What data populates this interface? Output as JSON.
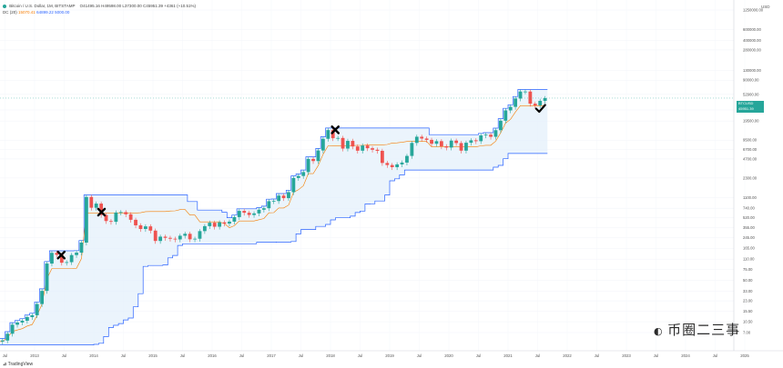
{
  "header": {
    "symbol": "Bitcoin / U.S. Dollar, 1M, BITSTAMP",
    "ohlc": "O41495.16 H49598.00 L37300.00 C45951.39 +4361 (+10.51%)",
    "dc_label": "DC (20)",
    "dc_value_1": "15070.41",
    "dc_value_2": "64899.22",
    "dc_value_3": "5000.00"
  },
  "price_tag": {
    "line1": "BTCUSD",
    "line2": "45951.39",
    "line3": "2 01 16"
  },
  "footer": {
    "tradingview": "TradingView",
    "watermark": "币圈二三事"
  },
  "colors": {
    "up": "#26a69a",
    "down": "#ef5350",
    "channel_line": "#2962ff",
    "basis_line": "#f57c00",
    "channel_fill": "#e3f0fb"
  },
  "chart_data": {
    "type": "candlestick",
    "y_scale": "log",
    "y_axis_unit": "USD",
    "y_ticks": [
      {
        "label": "1250000.00",
        "value": 1250000
      },
      {
        "label": "600000.00",
        "value": 600000
      },
      {
        "label": "400000.00",
        "value": 400000
      },
      {
        "label": "280000.00",
        "value": 280000
      },
      {
        "label": "130000.00",
        "value": 130000
      },
      {
        "label": "90000.00",
        "value": 90000
      },
      {
        "label": "52900.00",
        "value": 52900
      },
      {
        "label": "29500.00",
        "value": 29500
      },
      {
        "label": "19500.00",
        "value": 19500
      },
      {
        "label": "9500.00",
        "value": 9500
      },
      {
        "label": "6700.00",
        "value": 6700
      },
      {
        "label": "4700.00",
        "value": 4700
      },
      {
        "label": "2300.00",
        "value": 2300
      },
      {
        "label": "1100.00",
        "value": 1100
      },
      {
        "label": "740.00",
        "value": 740
      },
      {
        "label": "520.00",
        "value": 520
      },
      {
        "label": "355.00",
        "value": 355
      },
      {
        "label": "245.00",
        "value": 245
      },
      {
        "label": "165.00",
        "value": 165
      },
      {
        "label": "110.00",
        "value": 110
      },
      {
        "label": "75.00",
        "value": 75
      },
      {
        "label": "50.00",
        "value": 50
      },
      {
        "label": "33.00",
        "value": 33
      },
      {
        "label": "23.00",
        "value": 23
      },
      {
        "label": "15.50",
        "value": 15.5
      },
      {
        "label": "10.50",
        "value": 10.5
      },
      {
        "label": "7.00",
        "value": 7
      }
    ],
    "x_ticks": [
      {
        "label": "Jul",
        "t": 2012.5
      },
      {
        "label": "2013",
        "t": 2013.0
      },
      {
        "label": "Jul",
        "t": 2013.5
      },
      {
        "label": "2014",
        "t": 2014.0
      },
      {
        "label": "Jul",
        "t": 2014.5
      },
      {
        "label": "2015",
        "t": 2015.0
      },
      {
        "label": "Jul",
        "t": 2015.5
      },
      {
        "label": "2016",
        "t": 2016.0
      },
      {
        "label": "Jul",
        "t": 2016.5
      },
      {
        "label": "2017",
        "t": 2017.0
      },
      {
        "label": "Jul",
        "t": 2017.5
      },
      {
        "label": "2018",
        "t": 2018.0
      },
      {
        "label": "Jul",
        "t": 2018.5
      },
      {
        "label": "2019",
        "t": 2019.0
      },
      {
        "label": "Jul",
        "t": 2019.5
      },
      {
        "label": "2020",
        "t": 2020.0
      },
      {
        "label": "Jul",
        "t": 2020.5
      },
      {
        "label": "2021",
        "t": 2021.0
      },
      {
        "label": "Jul",
        "t": 2021.5
      },
      {
        "label": "2022",
        "t": 2022.0
      },
      {
        "label": "Jul",
        "t": 2022.5
      },
      {
        "label": "2023",
        "t": 2023.0
      },
      {
        "label": "Jul",
        "t": 2023.5
      },
      {
        "label": "2024",
        "t": 2024.0
      },
      {
        "label": "Jul",
        "t": 2024.5
      },
      {
        "label": "2025",
        "t": 2025.0
      },
      {
        "label": "Jul",
        "t": 2025.5
      }
    ],
    "closes": [
      5.2,
      5.0,
      5.0,
      4.9,
      5.0,
      5.2,
      6.7,
      9.4,
      10.2,
      10.9,
      12.5,
      13.4,
      20.4,
      33.4,
      93,
      139,
      129,
      96,
      98,
      128,
      140,
      204,
      1130,
      754,
      880,
      575,
      458,
      445,
      630,
      640,
      590,
      480,
      390,
      340,
      375,
      320,
      217,
      255,
      244,
      236,
      230,
      264,
      284,
      231,
      236,
      314,
      378,
      430,
      370,
      436,
      416,
      448,
      531,
      670,
      625,
      575,
      610,
      700,
      740,
      963,
      970,
      1190,
      1080,
      1350,
      2300,
      2480,
      2870,
      4700,
      4340,
      6450,
      10000,
      13860,
      10220,
      10320,
      6930,
      9240,
      7500,
      6400,
      7780,
      7020,
      6630,
      6370,
      4040,
      3740,
      3450,
      3830,
      4100,
      5260,
      8560,
      10800,
      10100,
      9600,
      8300,
      9150,
      7550,
      7200,
      9350,
      8520,
      6410,
      8620,
      9450,
      9140,
      11350,
      11660,
      10780,
      13800,
      19700,
      28990,
      33100,
      45200,
      58800,
      58800,
      37300,
      35000,
      41500,
      45951
    ],
    "start": {
      "year": 2012,
      "month": 1
    },
    "interval": "1M",
    "indicator": {
      "name": "DC (20)",
      "basis_value": 15070.41,
      "upper_value": 64899.22,
      "lower_value": 5000.0
    },
    "annotations": [
      {
        "type": "x-mark",
        "t": 2013.45,
        "price": 128
      },
      {
        "type": "x-mark",
        "t": 2014.13,
        "price": 640
      },
      {
        "type": "x-mark",
        "t": 2018.08,
        "price": 14000
      },
      {
        "type": "check-mark",
        "t": 2021.55,
        "price": 31000
      }
    ]
  }
}
